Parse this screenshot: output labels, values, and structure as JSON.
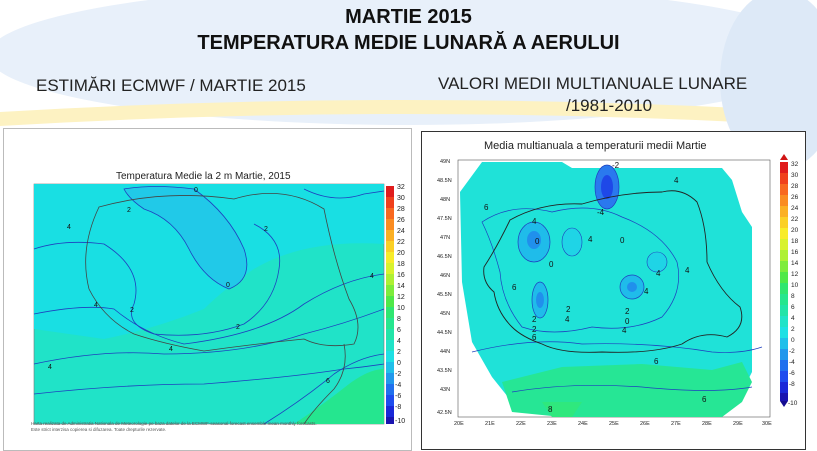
{
  "header": {
    "title_line1": "MARTIE 2015",
    "title_line2": "TEMPERATURA MEDIE LUNARĂ A AERULUI",
    "left_subtitle": "ESTIMĂRI ECMWF / MARTIE 2015",
    "right_subtitle_line1": "VALORI MEDII MULTIANUALE LUNARE",
    "right_subtitle_line2": "/1981-2010"
  },
  "left_map": {
    "title": "Temperatura Medie la 2 m Martie, 2015",
    "colorbar_labels": [
      "32",
      "30",
      "28",
      "26",
      "24",
      "22",
      "20",
      "18",
      "16",
      "14",
      "12",
      "10",
      "8",
      "6",
      "4",
      "2",
      "0",
      "-2",
      "-4",
      "-6",
      "-8",
      "-10"
    ],
    "contour_labels": [
      "0",
      "2",
      "2",
      "2",
      "2",
      "4",
      "4",
      "4",
      "4",
      "4",
      "6",
      "0"
    ],
    "footnote": "Harta realizata de Administratia Nationala de Meteorologie pe baza datelor de la ECMWF-seasonal forecast ensemble mean monthly forecasts. Este strict interzisa copierea si difuzarea. Toate drepturile rezervate."
  },
  "right_map": {
    "title": "Media multianuala a temperaturii medii Martie",
    "colorbar_labels": [
      "32",
      "30",
      "28",
      "26",
      "24",
      "22",
      "20",
      "18",
      "16",
      "14",
      "12",
      "10",
      "8",
      "6",
      "4",
      "2",
      "0",
      "-2",
      "-4",
      "-6",
      "-8",
      "-10"
    ],
    "lat_labels": [
      "49N",
      "48.5N",
      "48N",
      "47.5N",
      "47N",
      "46.5N",
      "46N",
      "45.5N",
      "45N",
      "44.5N",
      "44N",
      "43.5N",
      "43N",
      "42.5N"
    ],
    "lon_labels": [
      "20E",
      "21E",
      "22E",
      "23E",
      "24E",
      "25E",
      "26E",
      "27E",
      "28E",
      "29E",
      "30E"
    ],
    "contour_labels": [
      "-2",
      "-4",
      "4",
      "6",
      "4",
      "0",
      "4",
      "0",
      "4",
      "0",
      "4",
      "4",
      "6",
      "2",
      "2",
      "2",
      "0",
      "2",
      "4",
      "4",
      "6",
      "6",
      "6",
      "8"
    ]
  },
  "colors": {
    "header_bg_blue": "#e3edf9",
    "header_stripe_yellow": "#fdf4c8",
    "map_cyan": "#1ee1e6",
    "map_green": "#1fe5a6",
    "map_lightgreen": "#2ee889"
  }
}
